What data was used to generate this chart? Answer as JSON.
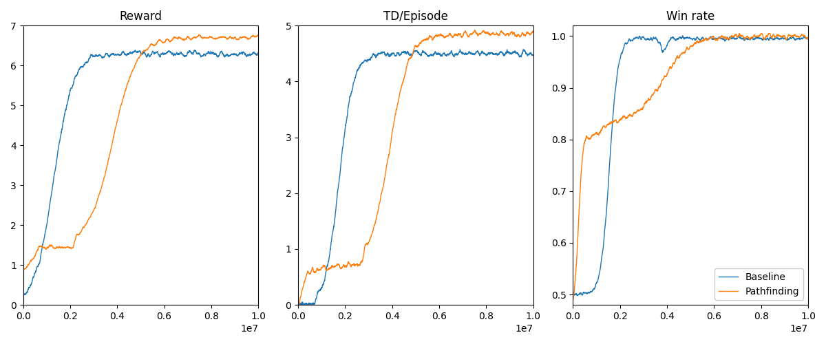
{
  "titles": [
    "Reward",
    "TD/Episode",
    "Win rate"
  ],
  "xlim": [
    0,
    10000000.0
  ],
  "reward_ylim": [
    0,
    7
  ],
  "td_ylim": [
    0,
    5
  ],
  "winrate_ylim": [
    0.48,
    1.02
  ],
  "reward_yticks": [
    0,
    1,
    2,
    3,
    4,
    5,
    6,
    7
  ],
  "td_yticks": [
    0,
    1,
    2,
    3,
    4,
    5
  ],
  "winrate_yticks": [
    0.5,
    0.6,
    0.7,
    0.8,
    0.9,
    1.0
  ],
  "baseline_color": "#1f77b4",
  "pathfinding_color": "#ff7f0e",
  "legend_labels": [
    "Baseline",
    "Pathfinding"
  ],
  "figsize": [
    12.0,
    5.0
  ],
  "dpi": 100,
  "seed": 7
}
